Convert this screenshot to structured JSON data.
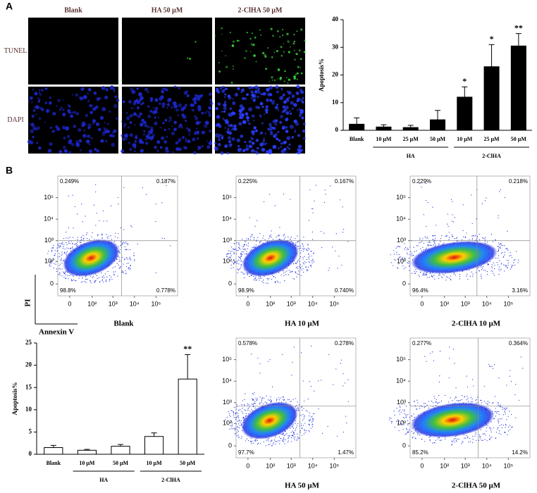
{
  "panel_a": {
    "label": "A",
    "image_columns": [
      "Blank",
      "HA  50 μM",
      "2-ClHA 50 μM"
    ],
    "image_rows": [
      "TUNEL",
      "DAPI"
    ]
  },
  "panel_b": {
    "label": "B"
  },
  "chart_data": [
    {
      "type": "bar",
      "y_label": "Apoptosis%",
      "color": "#000000",
      "edge_color": "#000000",
      "groups": [
        {
          "name": null,
          "categories": [
            "Blank"
          ]
        },
        {
          "name": "HA",
          "categories": [
            "10 μM",
            "25 μM",
            "50 μM"
          ]
        },
        {
          "name": "2-ClHA",
          "categories": [
            "10 μM",
            "25 μM",
            "50 μM"
          ]
        }
      ],
      "values": [
        2.2,
        1.2,
        1.0,
        3.8,
        12.0,
        23.0,
        30.5
      ],
      "errors": [
        2.3,
        0.8,
        0.8,
        3.4,
        3.7,
        8.0,
        4.5
      ],
      "annotations": [
        null,
        null,
        null,
        null,
        "*",
        "*",
        "**"
      ],
      "ylim": [
        0,
        40
      ],
      "yticks": [
        0,
        10,
        20,
        30,
        40
      ]
    },
    {
      "type": "bar",
      "y_label": "Apoptosis%",
      "color": "#ffffff",
      "edge_color": "#000000",
      "groups": [
        {
          "name": null,
          "categories": [
            "Blank"
          ]
        },
        {
          "name": "HA",
          "categories": [
            "10 μM",
            "50 μM"
          ]
        },
        {
          "name": "2-ClHA",
          "categories": [
            "10 μM",
            "50 μM"
          ]
        }
      ],
      "values": [
        1.5,
        0.9,
        1.8,
        4.0,
        16.9
      ],
      "errors": [
        0.5,
        0.2,
        0.4,
        0.8,
        5.5
      ],
      "annotations": [
        null,
        null,
        null,
        null,
        "**"
      ],
      "ylim": [
        0,
        25
      ],
      "yticks": [
        0,
        5,
        10,
        15,
        20,
        25
      ]
    }
  ],
  "flow_plots": {
    "x_axis_label": "Annexin V",
    "y_axis_label": "PI",
    "lim": [
      0,
      1000000
    ],
    "ticks": [
      0,
      {
        "value": 100,
        "label": "10²"
      },
      {
        "value": 1000,
        "label": "10³"
      },
      {
        "value": 10000,
        "label": "10⁴"
      },
      {
        "value": 100000,
        "label": "10⁵"
      }
    ],
    "plots": [
      {
        "caption": "Blank",
        "quadrants": [
          "0.249%",
          "0.187%",
          "98.8%",
          "0.778%"
        ],
        "gate": [
          2500,
          1000
        ]
      },
      {
        "caption": "HA 10 μM",
        "quadrants": [
          "0.225%",
          "0.167%",
          "98.9%",
          "0.740%"
        ],
        "gate": [
          2500,
          1000
        ]
      },
      {
        "caption": "2-ClHA  10 μM",
        "quadrants": [
          "0.229%",
          "0.218%",
          "96.4%",
          "3.16%"
        ],
        "gate": [
          3500,
          1000
        ]
      },
      {
        "caption": "HA  50 μM",
        "quadrants": [
          "0.578%",
          "0.278%",
          "97.7%",
          "1.47%"
        ],
        "gate": [
          2500,
          700
        ]
      },
      {
        "caption": "2-ClHA  50 μM",
        "quadrants": [
          "0.277%",
          "0.364%",
          "85.2%",
          "14.2%"
        ],
        "gate": [
          4000,
          700
        ]
      }
    ]
  }
}
